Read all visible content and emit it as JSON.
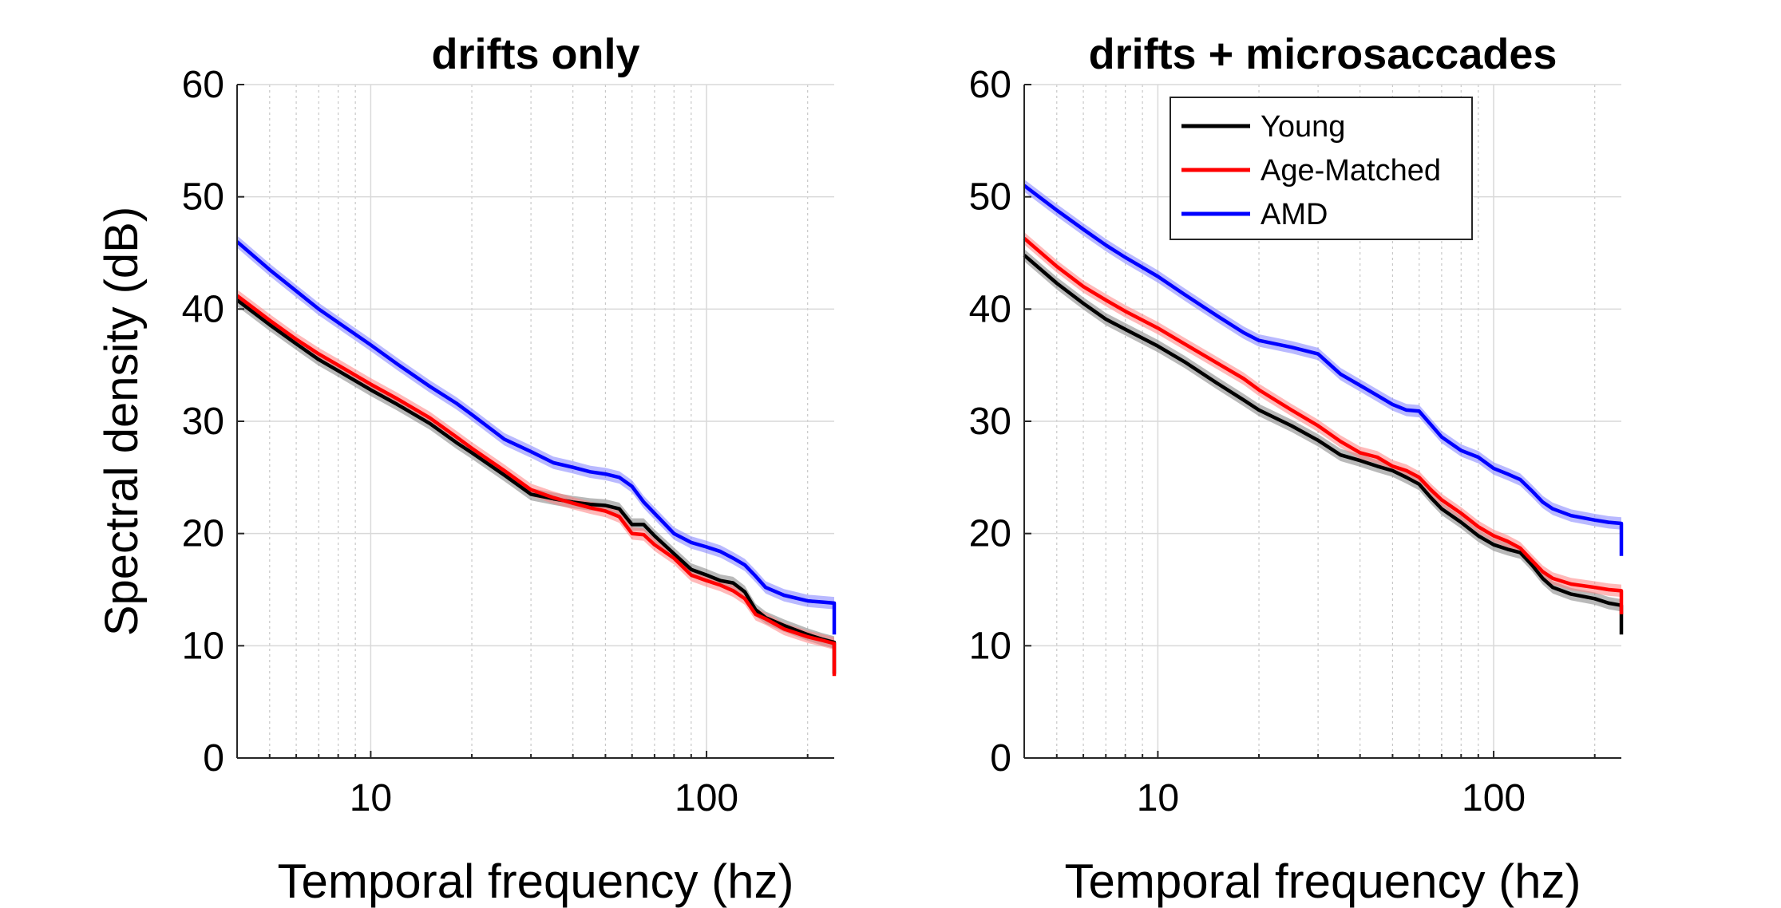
{
  "chart_data": [
    {
      "type": "line",
      "title": "drifts only",
      "xlabel": "Temporal frequency (hz)",
      "ylabel": "Spectral density (dB)",
      "x_scale": "log",
      "xlim": [
        4,
        240
      ],
      "ylim": [
        0,
        60
      ],
      "x_ticks": [
        10,
        100
      ],
      "x_tick_labels": [
        "10",
        "100"
      ],
      "y_ticks": [
        0,
        10,
        20,
        30,
        40,
        50,
        60
      ],
      "y_tick_labels": [
        "0",
        "10",
        "20",
        "30",
        "40",
        "50",
        "60"
      ],
      "grid": true,
      "legend": false,
      "series": [
        {
          "name": "Young",
          "color": "#000000",
          "band_color": "#808080",
          "x": [
            4,
            5,
            6,
            7,
            8,
            10,
            12,
            15,
            18,
            20,
            25,
            30,
            35,
            40,
            45,
            50,
            55,
            60,
            65,
            70,
            80,
            90,
            100,
            110,
            120,
            130,
            140,
            150,
            170,
            200,
            220,
            240,
            240
          ],
          "y": [
            40.8,
            38.6,
            36.9,
            35.5,
            34.5,
            32.8,
            31.5,
            29.8,
            28.1,
            27.2,
            25.2,
            23.5,
            23.1,
            22.8,
            22.6,
            22.5,
            22.2,
            20.8,
            20.8,
            19.8,
            18.2,
            16.8,
            16.3,
            15.8,
            15.6,
            14.8,
            13.2,
            12.5,
            11.8,
            11.0,
            10.6,
            10.3,
            7.5
          ]
        },
        {
          "name": "Age-Matched",
          "color": "#ff0000",
          "band_color": "#ff8080",
          "x": [
            4,
            5,
            6,
            7,
            8,
            10,
            12,
            15,
            18,
            20,
            25,
            30,
            35,
            40,
            45,
            50,
            55,
            60,
            65,
            70,
            80,
            90,
            100,
            110,
            120,
            130,
            140,
            150,
            170,
            200,
            220,
            240,
            240
          ],
          "y": [
            41.2,
            39.0,
            37.3,
            36.0,
            35.0,
            33.3,
            32.0,
            30.3,
            28.6,
            27.6,
            25.6,
            23.9,
            23.2,
            22.7,
            22.3,
            22.0,
            21.5,
            20.0,
            19.9,
            19.0,
            17.8,
            16.3,
            15.8,
            15.4,
            14.9,
            14.2,
            12.8,
            12.4,
            11.5,
            10.8,
            10.5,
            10.2,
            7.3
          ]
        },
        {
          "name": "AMD",
          "color": "#0000ff",
          "band_color": "#8080ff",
          "x": [
            4,
            5,
            6,
            7,
            8,
            10,
            12,
            15,
            18,
            20,
            25,
            30,
            35,
            40,
            45,
            50,
            55,
            60,
            65,
            70,
            80,
            90,
            100,
            110,
            120,
            130,
            140,
            150,
            170,
            200,
            220,
            240,
            240
          ],
          "y": [
            46.0,
            43.5,
            41.6,
            40.0,
            38.8,
            36.8,
            35.1,
            33.1,
            31.6,
            30.6,
            28.4,
            27.3,
            26.3,
            25.9,
            25.5,
            25.3,
            25.0,
            24.2,
            22.8,
            21.8,
            20.0,
            19.2,
            18.8,
            18.4,
            17.8,
            17.2,
            16.2,
            15.2,
            14.5,
            14.0,
            13.9,
            13.8,
            11.0
          ]
        }
      ]
    },
    {
      "type": "line",
      "title": "drifts + microsaccades",
      "xlabel": "Temporal frequency (hz)",
      "ylabel": "",
      "x_scale": "log",
      "xlim": [
        4,
        240
      ],
      "ylim": [
        0,
        60
      ],
      "x_ticks": [
        10,
        100
      ],
      "x_tick_labels": [
        "10",
        "100"
      ],
      "y_ticks": [
        0,
        10,
        20,
        30,
        40,
        50,
        60
      ],
      "y_tick_labels": [
        "0",
        "10",
        "20",
        "30",
        "40",
        "50",
        "60"
      ],
      "grid": true,
      "legend": true,
      "legend_position": "top-left",
      "series": [
        {
          "name": "Young",
          "color": "#000000",
          "band_color": "#808080",
          "x": [
            4,
            5,
            6,
            7,
            8,
            10,
            12,
            15,
            18,
            20,
            25,
            30,
            35,
            40,
            45,
            50,
            55,
            60,
            65,
            70,
            80,
            90,
            100,
            110,
            120,
            130,
            140,
            150,
            170,
            200,
            220,
            240,
            240
          ],
          "y": [
            44.8,
            42.3,
            40.5,
            39.1,
            38.2,
            36.7,
            35.3,
            33.4,
            31.9,
            31.0,
            29.6,
            28.3,
            27.0,
            26.5,
            26.0,
            25.6,
            25.0,
            24.4,
            23.2,
            22.2,
            21.0,
            19.8,
            19.0,
            18.6,
            18.3,
            17.2,
            16.0,
            15.2,
            14.6,
            14.2,
            13.8,
            13.6,
            11.0
          ]
        },
        {
          "name": "Age-Matched",
          "color": "#ff0000",
          "band_color": "#ff8080",
          "x": [
            4,
            5,
            6,
            7,
            8,
            10,
            12,
            15,
            18,
            20,
            25,
            30,
            35,
            40,
            45,
            50,
            55,
            60,
            65,
            70,
            80,
            90,
            100,
            110,
            120,
            130,
            140,
            150,
            170,
            200,
            220,
            240,
            240
          ],
          "y": [
            46.3,
            43.8,
            42.0,
            40.8,
            39.8,
            38.3,
            36.9,
            35.2,
            33.8,
            32.8,
            31.0,
            29.6,
            28.2,
            27.2,
            26.8,
            26.0,
            25.6,
            25.0,
            23.9,
            23.0,
            21.8,
            20.6,
            19.8,
            19.3,
            18.7,
            17.6,
            16.6,
            16.0,
            15.5,
            15.2,
            15.0,
            14.9,
            12.8
          ]
        },
        {
          "name": "AMD",
          "color": "#0000ff",
          "band_color": "#8080ff",
          "x": [
            4,
            5,
            6,
            7,
            8,
            10,
            12,
            15,
            18,
            20,
            25,
            30,
            35,
            40,
            45,
            50,
            55,
            60,
            65,
            70,
            80,
            90,
            100,
            110,
            120,
            130,
            140,
            150,
            170,
            200,
            220,
            240,
            240
          ],
          "y": [
            51.0,
            48.8,
            47.1,
            45.7,
            44.6,
            42.9,
            41.3,
            39.4,
            37.9,
            37.2,
            36.6,
            36.0,
            34.2,
            33.2,
            32.3,
            31.5,
            31.0,
            30.9,
            29.7,
            28.6,
            27.4,
            26.8,
            25.8,
            25.3,
            24.8,
            23.8,
            22.8,
            22.2,
            21.6,
            21.2,
            21.0,
            20.9,
            18.0
          ]
        }
      ]
    }
  ]
}
